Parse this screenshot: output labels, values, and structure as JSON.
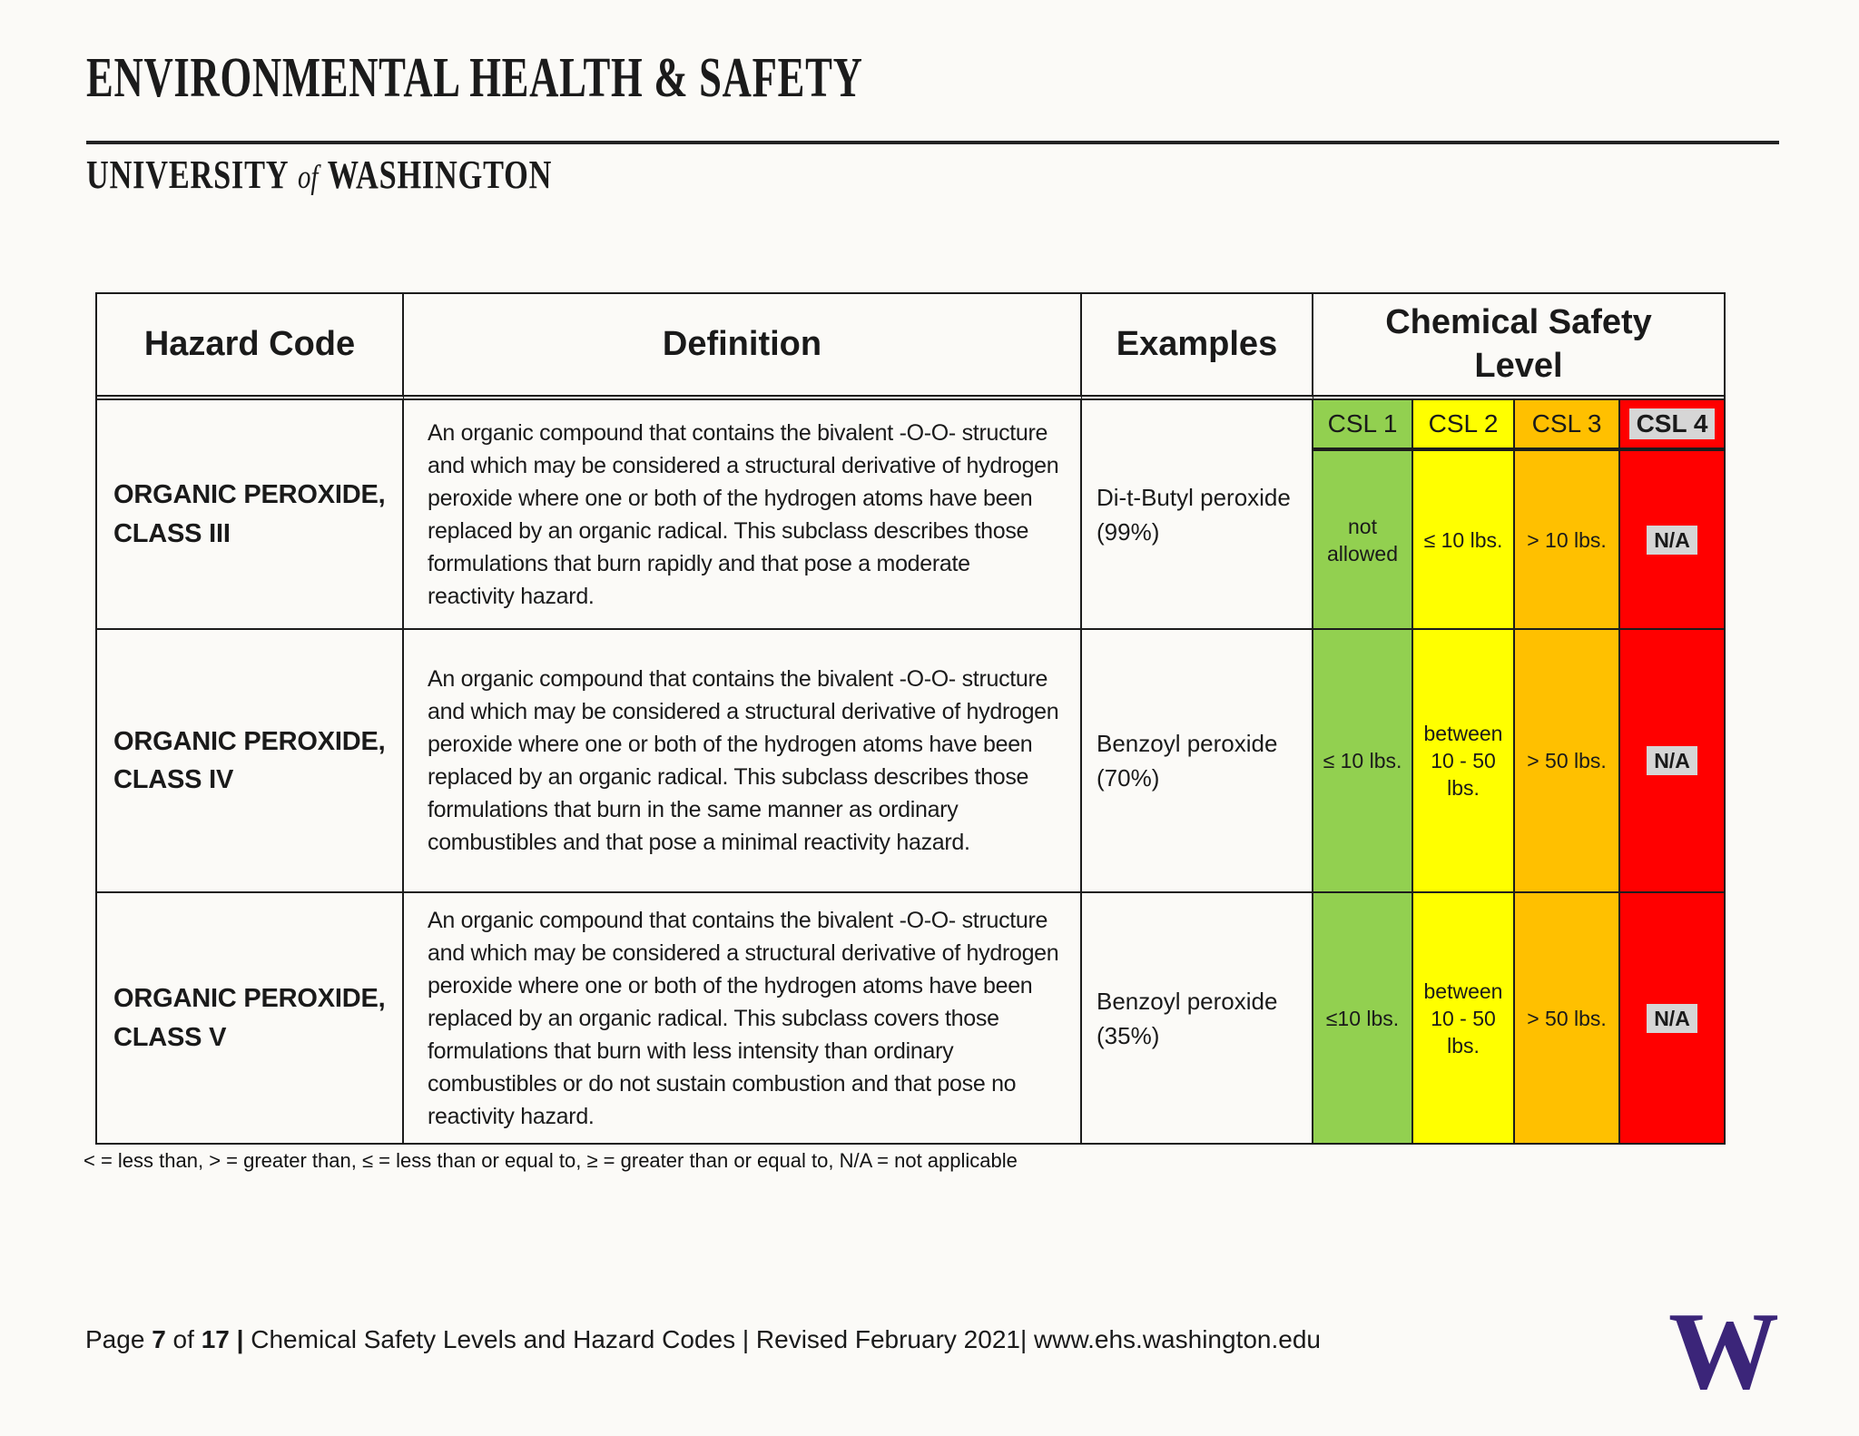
{
  "header": {
    "org_title": "ENVIRONMENTAL HEALTH & SAFETY",
    "university": {
      "pre": "UNIVERSITY",
      "of": "of",
      "post": "WASHINGTON"
    }
  },
  "colors": {
    "csl1_green": "#92D050",
    "csl2_yellow": "#FFFF00",
    "csl3_orange": "#FFC000",
    "csl4_red": "#FF0000",
    "na_chip_gray": "#D6D6D6",
    "uw_purple": "#3B2579"
  },
  "table": {
    "headers": {
      "hazard": "Hazard Code",
      "definition": "Definition",
      "examples": "Examples",
      "csl_group": "Chemical Safety Level"
    },
    "csl_levels": [
      "CSL 1",
      "CSL 2",
      "CSL 3",
      "CSL 4"
    ],
    "rows": [
      {
        "hazard_code": "ORGANIC PEROXIDE, CLASS III",
        "definition": "An organic compound that contains the bivalent -O-O- structure and which may be considered a structural derivative of hydrogen peroxide where one or both of the hydrogen atoms have been replaced by an organic radical. This subclass describes those formulations that burn rapidly and that pose a moderate reactivity hazard.",
        "example": "Di-t-Butyl peroxide (99%)",
        "csl": [
          "not allowed",
          "≤ 10 lbs.",
          "> 10 lbs.",
          "N/A"
        ]
      },
      {
        "hazard_code": "ORGANIC PEROXIDE, CLASS IV",
        "definition": "An organic compound that contains the bivalent -O-O- structure and which may be considered a structural derivative of hydrogen peroxide where one or both of the hydrogen atoms have been replaced by an organic radical. This subclass describes those formulations that burn in the same manner as ordinary combustibles and that pose a minimal reactivity hazard.",
        "example": "Benzoyl peroxide (70%)",
        "csl": [
          "≤ 10 lbs.",
          "between 10 - 50 lbs.",
          "> 50 lbs.",
          "N/A"
        ]
      },
      {
        "hazard_code": "ORGANIC PEROXIDE, CLASS V",
        "definition": "An organic compound that contains the bivalent -O-O- structure and which may be considered a structural derivative of hydrogen peroxide where one or both of the hydrogen atoms have been replaced by an organic radical. This subclass covers those formulations that burn with less intensity than ordinary combustibles or do not sustain combustion and that pose no reactivity hazard.",
        "example": "Benzoyl peroxide (35%)",
        "csl": [
          "≤10 lbs.",
          "between 10 - 50 lbs.",
          "> 50 lbs.",
          "N/A"
        ]
      }
    ]
  },
  "footnote": "< = less than, > = greater than, ≤ = less than or equal to, ≥ = greater than or equal to, N/A = not applicable",
  "footer": {
    "page_label": "Page",
    "page_number": "7",
    "of_label": "of",
    "page_total": "17",
    "separator": "|",
    "rest": "Chemical Safety Levels and Hazard Codes | Revised February 2021| www.ehs.washington.edu"
  },
  "logo_letter": "W"
}
